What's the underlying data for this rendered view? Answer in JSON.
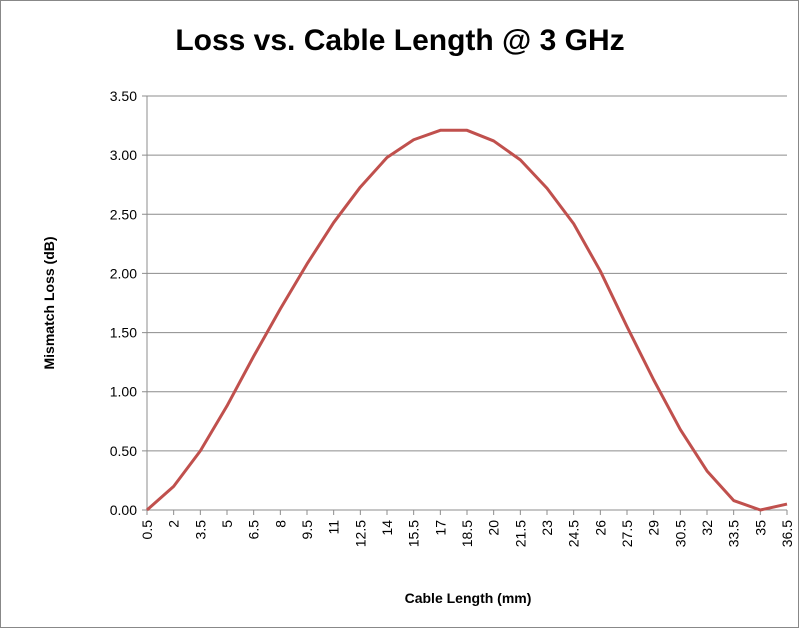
{
  "chart_data": {
    "type": "line",
    "title": "Loss vs. Cable Length @ 3 GHz",
    "x_label": "Cable Length (mm)",
    "y_label": "Mismatch Loss (dB)",
    "x": [
      0.5,
      2,
      3.5,
      5,
      6.5,
      8,
      9.5,
      11,
      12.5,
      14,
      15.5,
      17,
      18.5,
      20,
      21.5,
      23,
      24.5,
      26,
      27.5,
      29,
      30.5,
      32,
      33.5,
      35,
      36.5
    ],
    "series": [
      {
        "color": "#c0504d",
        "values": [
          0,
          0.2,
          0.5,
          0.88,
          1.3,
          1.7,
          2.08,
          2.43,
          2.73,
          2.98,
          3.13,
          3.21,
          3.21,
          3.12,
          2.96,
          2.72,
          2.42,
          2.02,
          1.55,
          1.1,
          0.68,
          0.33,
          0.08,
          0,
          0.05
        ]
      }
    ],
    "xlim": [
      0.5,
      36.5
    ],
    "ylim": [
      0,
      3.5
    ],
    "yticks": [
      {
        "value": 0,
        "label": "0.00"
      },
      {
        "value": 0.5,
        "label": "0.50"
      },
      {
        "value": 1,
        "label": "1.00"
      },
      {
        "value": 1.5,
        "label": "1.50"
      },
      {
        "value": 2,
        "label": "2.00"
      },
      {
        "value": 2.5,
        "label": "2.50"
      },
      {
        "value": 3,
        "label": "3.00"
      },
      {
        "value": 3.5,
        "label": "3.50"
      }
    ],
    "grid": true
  }
}
